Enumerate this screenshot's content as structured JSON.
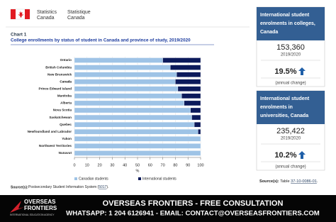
{
  "header": {
    "agency_en_lines": [
      "Statistics",
      "Canada"
    ],
    "agency_fr_lines": [
      "Statistique",
      "Canada"
    ]
  },
  "chart_data": {
    "type": "bar",
    "orientation": "horizontal",
    "stacked": true,
    "label": "Chart 1",
    "title": "College enrollments by status of student in Canada and province of study, 2019/2020",
    "categories": [
      "Ontario",
      "British Columbia",
      "New Brunswick",
      "Canada",
      "Prince Edward Island",
      "Manitoba",
      "Alberta",
      "Nova Scotia",
      "Saskatchewan",
      "Quebec",
      "Newfoundland and Labrador",
      "Yukon",
      "Northwest Territories",
      "Nunavut"
    ],
    "highlight_index": 3,
    "series": [
      {
        "name": "Canadian students",
        "color": "#9ec3e6",
        "values": [
          70,
          76,
          81,
          80,
          82,
          85,
          87,
          92,
          93,
          95,
          98,
          100,
          100,
          100
        ]
      },
      {
        "name": "International students",
        "color": "#0c1a5b",
        "values": [
          30,
          24,
          19,
          20,
          18,
          15,
          13,
          8,
          7,
          5,
          2,
          0,
          0,
          0
        ]
      }
    ],
    "xlim": [
      0,
      100
    ],
    "xticks": [
      0,
      10,
      20,
      30,
      40,
      50,
      60,
      70,
      80,
      90,
      100
    ],
    "xlabel": "%",
    "grid": true,
    "source_label": "Source(s):",
    "source_text": "Postsecondary Student Information System (",
    "source_link": "5017",
    "source_end": ")."
  },
  "panels": [
    {
      "title_lines": [
        "International student",
        "enrolments in colleges,",
        "Canada"
      ],
      "value": "153,360",
      "period": "2019/2020",
      "change": "19.5%",
      "change_label": "(annual change)"
    },
    {
      "title_lines": [
        "International student",
        "enrolments in",
        "universities, Canada"
      ],
      "value": "235,422",
      "period": "2019/2020",
      "change": "10.2%",
      "change_label": "(annual change)"
    }
  ],
  "panel_source": {
    "label": "Source(s):",
    "text": "Table",
    "link": "37-10-0086-01",
    "end": "."
  },
  "banner": {
    "brand_lines": [
      "OVERSEAS",
      "FRONTIERS"
    ],
    "tagline": "INTERNATIONAL EDUCATION AGENCY",
    "headline": "OVERSEAS FRONTIERS - FREE CONSULTATION",
    "contact": "WHATSAPP: 1 204 6126941 - EMAIL: CONTACT@OVERSEASFRONTIERS.COM"
  }
}
